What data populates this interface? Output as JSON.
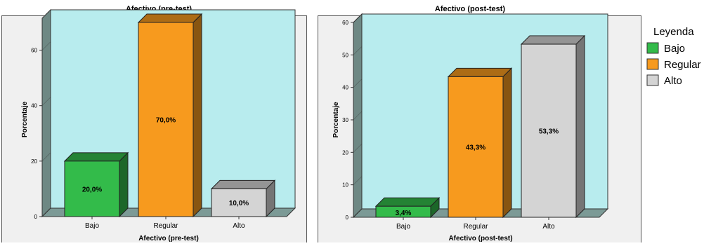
{
  "colors": {
    "bajo": "#33bb4a",
    "regular": "#f79a1e",
    "alto": "#d4d4d4",
    "plot_background": "#b8ecee",
    "panel_background": "#f0f0f0",
    "floor": "#7c9a96"
  },
  "legend": {
    "title": "Leyenda",
    "items": [
      {
        "label": "Bajo",
        "color": "#33bb4a"
      },
      {
        "label": "Regular",
        "color": "#f79a1e"
      },
      {
        "label": "Alto",
        "color": "#d4d4d4"
      }
    ]
  },
  "chart_data": [
    {
      "type": "bar",
      "title": "Afectivo (pre-test)",
      "xlabel": "Afectivo (pre-test)",
      "ylabel": "Porcentaje",
      "categories": [
        "Bajo",
        "Regular",
        "Alto"
      ],
      "values": [
        20.0,
        70.0,
        10.0
      ],
      "data_labels": [
        "20,0%",
        "70,0%",
        "10,0%"
      ],
      "ylim": [
        0,
        70
      ],
      "yticks": [
        0,
        20,
        40,
        60
      ],
      "ytick_labels": [
        "0",
        "20",
        "40",
        "60"
      ],
      "bar_style": "3d",
      "grid": false,
      "legend": "right"
    },
    {
      "type": "bar",
      "title": "Afectivo (post-test)",
      "xlabel": "Afectivo (post-test)",
      "ylabel": "Porcentaje",
      "categories": [
        "Bajo",
        "Regular",
        "Alto"
      ],
      "values": [
        3.4,
        43.3,
        53.3
      ],
      "data_labels": [
        "3,4%",
        "43,3%",
        "53,3%"
      ],
      "ylim": [
        0,
        60
      ],
      "yticks": [
        0,
        10,
        20,
        30,
        40,
        50,
        60
      ],
      "ytick_labels": [
        "0",
        "10",
        "20",
        "30",
        "40",
        "50",
        "60"
      ],
      "bar_style": "3d",
      "grid": false,
      "legend": "right"
    }
  ]
}
